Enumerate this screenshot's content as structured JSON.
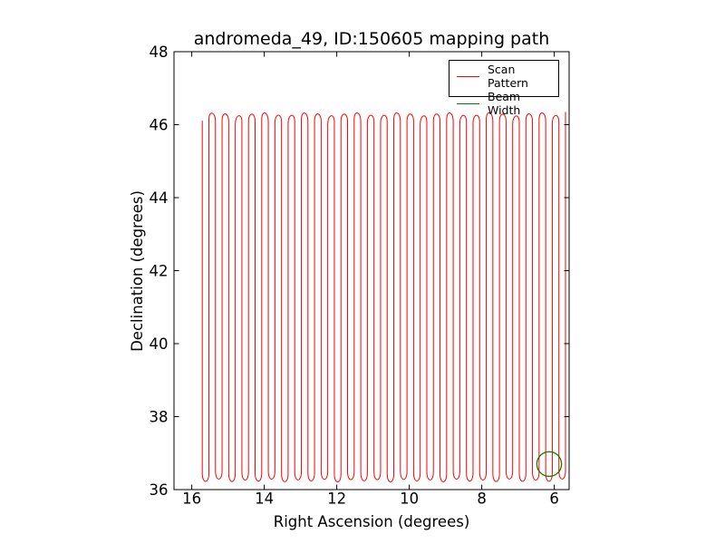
{
  "chart_data": {
    "type": "line",
    "title": "andromeda_49, ID:150605 mapping path",
    "xlabel": "Right Ascension (degrees)",
    "ylabel": "Declination (degrees)",
    "xlim": [
      16.49,
      5.59
    ],
    "x_inverted": true,
    "ylim": [
      36,
      48
    ],
    "xticks": [
      16,
      14,
      12,
      10,
      8,
      6
    ],
    "yticks": [
      36,
      38,
      40,
      42,
      44,
      46,
      48
    ],
    "grid": false,
    "background_color": "#ffffff",
    "legend": {
      "position": "upper right",
      "items": [
        {
          "label": "Scan Pattern",
          "color": "#ff0000"
        },
        {
          "label": "Beam Width",
          "color": "#008000"
        }
      ]
    },
    "series": [
      {
        "name": "Scan Pattern",
        "color": "#ff0000",
        "pattern": "serpentine-raster",
        "description": "continuous boustrophedon mapping path: vertical scan columns in declination with rounded U-turns at bottom and rounded arches at top",
        "ra_start": 15.71,
        "ra_end": 5.69,
        "num_columns": 56,
        "column_spacing_deg": 0.182,
        "dec_scan_min": 36.2,
        "dec_scan_max": 46.3,
        "top_wobble_deg": 0.07,
        "turn_rounding_deg": 0.25
      },
      {
        "name": "Beam Width",
        "color": "#008000",
        "shape": "circle",
        "center_ra": 6.14,
        "center_dec": 36.7,
        "radius_deg": 0.34
      }
    ]
  }
}
